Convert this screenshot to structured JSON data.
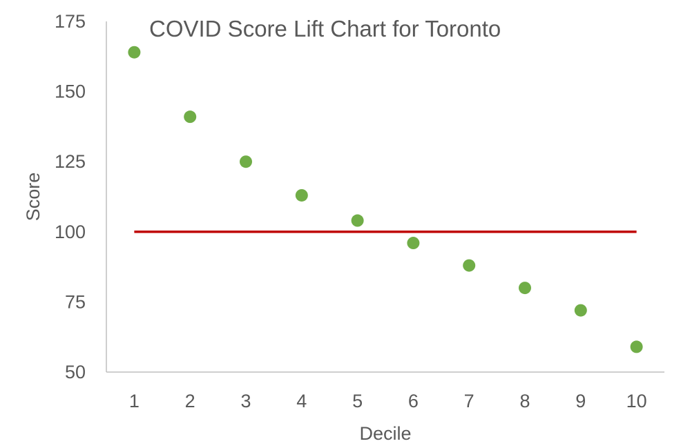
{
  "chart_data": {
    "type": "scatter",
    "title": "COVID Score Lift Chart for Toronto",
    "xlabel": "Decile",
    "ylabel": "Score",
    "x_ticks": [
      "1",
      "2",
      "3",
      "4",
      "5",
      "6",
      "7",
      "8",
      "9",
      "10"
    ],
    "y_ticks": [
      "50",
      "75",
      "100",
      "125",
      "150",
      "175"
    ],
    "ylim": [
      50,
      175
    ],
    "grid": false,
    "legend": "none",
    "series": [
      {
        "x": [
          1,
          2,
          3,
          4,
          5,
          6,
          7,
          8,
          9,
          10
        ],
        "values": [
          164,
          141,
          125,
          113,
          104,
          96,
          88,
          80,
          72,
          59
        ],
        "color": "#70ad47",
        "marker": "circle"
      }
    ],
    "reference_line": {
      "y": 100,
      "x_from": 1,
      "x_to": 10,
      "color": "#c00000"
    }
  }
}
